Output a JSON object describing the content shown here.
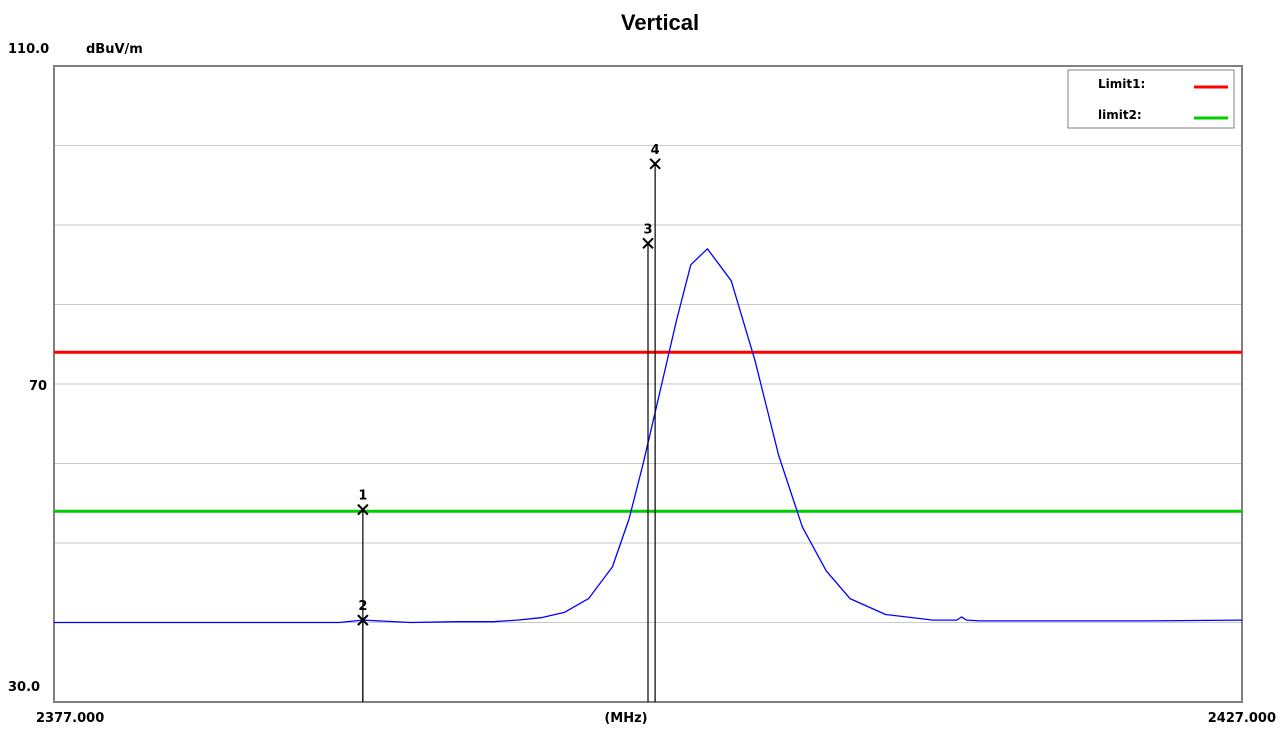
{
  "chart_data": {
    "type": "line",
    "title": "Vertical",
    "unit_label": "dBuV/m",
    "xlabel": "(MHz)",
    "xlim": [
      2377.0,
      2427.0
    ],
    "ylim": [
      30.0,
      110.0
    ],
    "tick_labels": {
      "y_top": "110.0",
      "y_mid": "70",
      "y_bottom": "30.0",
      "x_left": "2377.000",
      "x_right": "2427.000"
    },
    "y_gridlines": [
      40,
      50,
      60,
      70,
      80,
      90,
      100
    ],
    "grid": true,
    "legend_position": "top-right",
    "colors": {
      "trace": "#0000ff",
      "limit1": "#ff0000",
      "limit2": "#00cc00",
      "grid": "#c8c8c8",
      "frame": "#808080",
      "marker": "#000000"
    },
    "limits": [
      {
        "name": "Limit1:",
        "value": 74.0,
        "color": "#ff0000"
      },
      {
        "name": "limit2:",
        "value": 54.0,
        "color": "#00cc00"
      }
    ],
    "series": [
      {
        "color": "#0000ff",
        "x": [
          2377.0,
          2380.0,
          2383.0,
          2386.0,
          2389.0,
          2390.0,
          2392.0,
          2394.0,
          2395.5,
          2396.5,
          2397.5,
          2398.5,
          2399.5,
          2400.5,
          2401.2,
          2401.8,
          2402.5,
          2403.2,
          2403.8,
          2404.5,
          2405.5,
          2406.5,
          2407.5,
          2408.5,
          2409.5,
          2410.5,
          2412.0,
          2414.0,
          2415.0,
          2415.2,
          2415.4,
          2416.0,
          2418.0,
          2420.0,
          2423.0,
          2427.0
        ],
        "y": [
          40.0,
          40.0,
          40.0,
          40.0,
          40.0,
          40.3,
          40.0,
          40.1,
          40.1,
          40.3,
          40.6,
          41.3,
          43.0,
          47.0,
          53.0,
          60.0,
          69.0,
          78.0,
          85.0,
          87.0,
          83.0,
          73.0,
          61.0,
          52.0,
          46.5,
          43.0,
          41.0,
          40.3,
          40.3,
          40.7,
          40.3,
          40.2,
          40.2,
          40.2,
          40.2,
          40.3
        ]
      }
    ],
    "markers": [
      {
        "label": "1",
        "x": 2390.0,
        "y": 54.2
      },
      {
        "label": "2",
        "x": 2390.0,
        "y": 40.3
      },
      {
        "label": "3",
        "x": 2402.0,
        "y": 87.7
      },
      {
        "label": "4",
        "x": 2402.3,
        "y": 97.7
      }
    ]
  }
}
